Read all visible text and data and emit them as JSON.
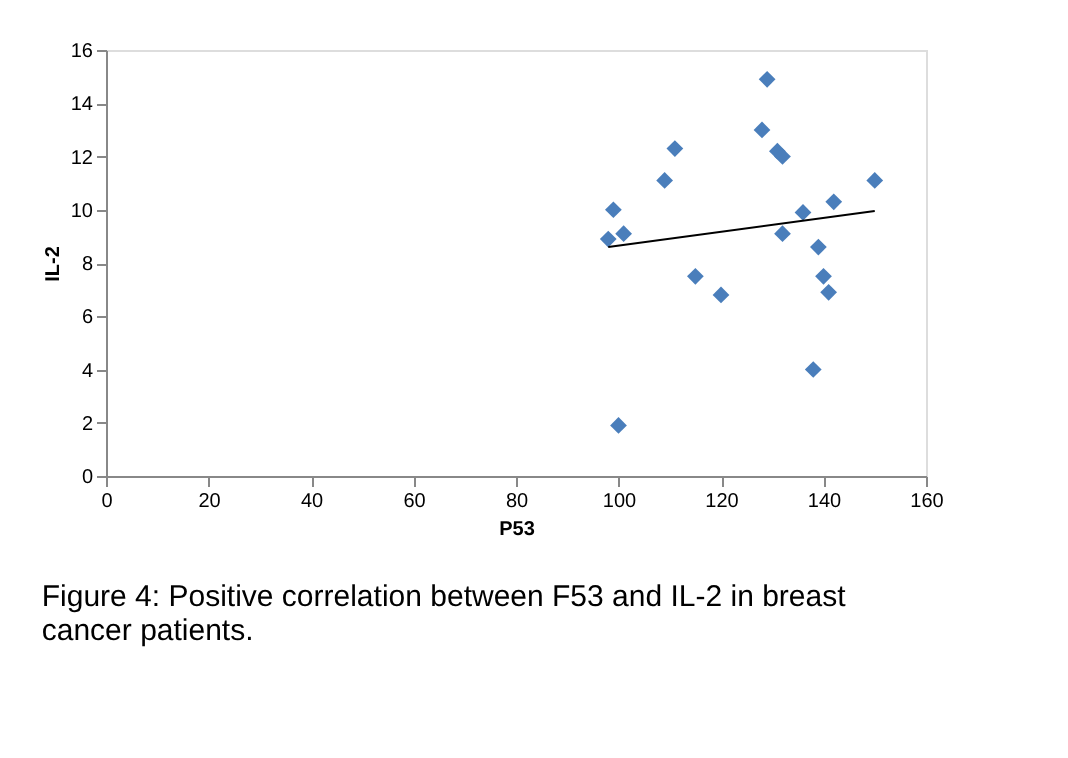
{
  "chart_data": {
    "type": "scatter",
    "xlabel": "P53",
    "ylabel": "IL-2",
    "grid": false,
    "xlim": [
      0,
      160
    ],
    "xticks": [
      0,
      20,
      40,
      60,
      80,
      100,
      120,
      140,
      160
    ],
    "ylim": [
      0,
      16
    ],
    "yticks": [
      0,
      2,
      4,
      6,
      8,
      10,
      12,
      14,
      16
    ],
    "annotations": [
      "Figure 4: Positive correlation between F53 and IL-2 in breast cancer patients."
    ],
    "series": [
      {
        "color": "#4a7ebb",
        "marker": "diamond",
        "x": [
          98,
          99,
          100,
          101,
          109,
          111,
          115,
          120,
          128,
          129,
          131,
          132,
          132,
          136,
          138,
          139,
          140,
          141,
          142,
          150
        ],
        "values": [
          8.9,
          10,
          1.9,
          9.1,
          11.1,
          12.3,
          7.5,
          6.8,
          13,
          14.9,
          12.2,
          12,
          9.1,
          9.9,
          4,
          8.6,
          7.5,
          6.9,
          10.3,
          11.1
        ]
      },
      {
        "type": "line",
        "color": "#000000",
        "x": [
          98,
          150
        ],
        "values": [
          8.6,
          9.95
        ],
        "marker": "none"
      }
    ]
  }
}
